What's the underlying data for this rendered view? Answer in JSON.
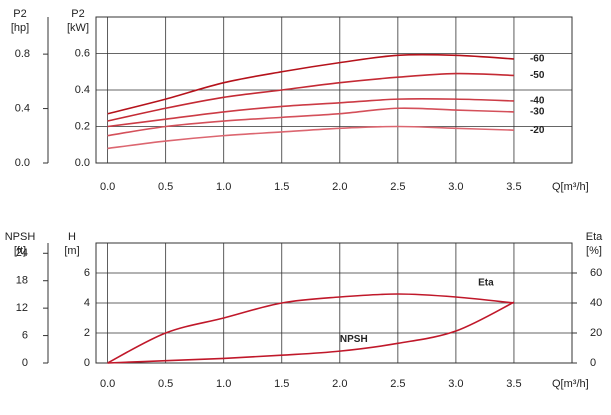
{
  "chart_data": [
    {
      "type": "line",
      "xlabel": "Q[m³/h]",
      "ylabel": [
        "P2",
        "[kW]"
      ],
      "y2label": [
        "P2",
        "[hp]"
      ],
      "x": [
        0,
        0.5,
        1,
        1.5,
        2,
        2.5,
        3,
        3.5
      ],
      "xlim": [
        -0.1,
        4
      ],
      "xticks": [
        {
          "value": 0,
          "label": "0.0"
        },
        0.5,
        {
          "value": 1,
          "label": "1.0"
        },
        1.5,
        {
          "value": 2,
          "label": "2.0"
        },
        2.5,
        {
          "value": 3,
          "label": "3.0"
        },
        3.5
      ],
      "ylim": [
        0,
        0.8
      ],
      "yticks": [
        {
          "value": 0,
          "label": "0.0"
        },
        0.2,
        0.4,
        0.6
      ],
      "y2lim": [
        0,
        1.0728
      ],
      "y2ticks": [
        {
          "value": 0,
          "label": "0.0"
        },
        0.4,
        0.8
      ],
      "grid": true,
      "series": [
        {
          "name": "-60",
          "color": "#b5121b",
          "values": [
            0.27,
            0.35,
            0.44,
            0.5,
            0.55,
            0.59,
            0.59,
            0.57
          ]
        },
        {
          "name": "-50",
          "color": "#c42a34",
          "values": [
            0.23,
            0.3,
            0.36,
            0.4,
            0.44,
            0.47,
            0.49,
            0.48
          ]
        },
        {
          "name": "-40",
          "color": "#cc3b45",
          "values": [
            0.2,
            0.24,
            0.28,
            0.31,
            0.33,
            0.35,
            0.35,
            0.34
          ]
        },
        {
          "name": "-30",
          "color": "#d4505a",
          "values": [
            0.15,
            0.2,
            0.23,
            0.25,
            0.27,
            0.3,
            0.29,
            0.28
          ]
        },
        {
          "name": "-20",
          "color": "#dc6670",
          "values": [
            0.08,
            0.12,
            0.15,
            0.17,
            0.19,
            0.2,
            0.19,
            0.18
          ]
        }
      ]
    },
    {
      "type": "line",
      "xlabel": "Q[m³/h]",
      "ylabel": [
        "H",
        "[m]"
      ],
      "y2label": [
        "Eta",
        "[%]"
      ],
      "y3label": [
        "NPSH",
        "[ft]"
      ],
      "x": [
        0,
        0.5,
        1,
        1.5,
        2,
        2.5,
        3,
        3.5
      ],
      "xlim": [
        -0.1,
        4
      ],
      "xticks": [
        {
          "value": 0,
          "label": "0.0"
        },
        0.5,
        {
          "value": 1,
          "label": "1.0"
        },
        1.5,
        {
          "value": 2,
          "label": "2.0"
        },
        2.5,
        {
          "value": 3,
          "label": "3.0"
        },
        3.5
      ],
      "ylim": [
        0,
        8
      ],
      "yticks": [
        0,
        2,
        4,
        6
      ],
      "y2lim": [
        0,
        80
      ],
      "y2ticks": [
        0,
        20,
        40,
        60
      ],
      "y3lim": [
        0,
        26.25
      ],
      "y3ticks": [
        0,
        6,
        12,
        18,
        24
      ],
      "grid": true,
      "series": [
        {
          "name": "Eta",
          "color": "#c0182a",
          "axis": "y2",
          "values": [
            0,
            20,
            30,
            40,
            44,
            46,
            44,
            40
          ]
        },
        {
          "name": "NPSH",
          "color": "#c0182a",
          "axis": "y3",
          "values": [
            0,
            0.5,
            1,
            1.7,
            2.6,
            4.3,
            7,
            13.3
          ]
        }
      ]
    }
  ]
}
